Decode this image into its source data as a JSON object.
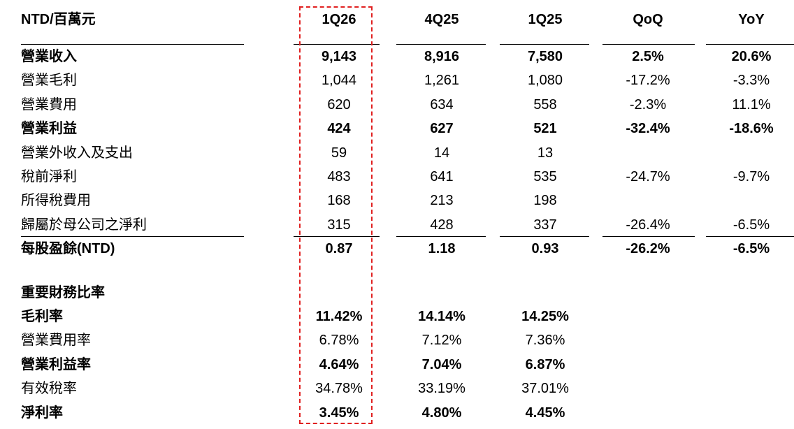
{
  "header": {
    "unit_label": "NTD/百萬元",
    "columns": [
      "1Q26",
      "4Q25",
      "1Q25",
      "QoQ",
      "YoY"
    ]
  },
  "income_statement": [
    {
      "label": "營業收入",
      "values": [
        "9,143",
        "8,916",
        "7,580",
        "2.5%",
        "20.6%"
      ],
      "bold": true
    },
    {
      "label": "營業毛利",
      "values": [
        "1,044",
        "1,261",
        "1,080",
        "-17.2%",
        "-3.3%"
      ],
      "bold": false
    },
    {
      "label": "營業費用",
      "values": [
        "620",
        "634",
        "558",
        "-2.3%",
        "11.1%"
      ],
      "bold": false
    },
    {
      "label": "營業利益",
      "values": [
        "424",
        "627",
        "521",
        "-32.4%",
        "-18.6%"
      ],
      "bold": true
    },
    {
      "label": "營業外收入及支出",
      "values": [
        "59",
        "14",
        "13",
        "",
        ""
      ],
      "bold": false
    },
    {
      "label": "稅前淨利",
      "values": [
        "483",
        "641",
        "535",
        "-24.7%",
        "-9.7%"
      ],
      "bold": false
    },
    {
      "label": "所得稅費用",
      "values": [
        "168",
        "213",
        "198",
        "",
        ""
      ],
      "bold": false
    },
    {
      "label": "歸屬於母公司之淨利",
      "values": [
        "315",
        "428",
        "337",
        "-26.4%",
        "-6.5%"
      ],
      "bold": false
    },
    {
      "label": "每股盈餘(NTD)",
      "values": [
        "0.87",
        "1.18",
        "0.93",
        "-26.2%",
        "-6.5%"
      ],
      "bold": true
    }
  ],
  "ratios_section_title": "重要財務比率",
  "ratios": [
    {
      "label": "毛利率",
      "values": [
        "11.42%",
        "14.14%",
        "14.25%"
      ],
      "bold": true
    },
    {
      "label": "營業費用率",
      "values": [
        "6.78%",
        "7.12%",
        "7.36%"
      ],
      "bold": false
    },
    {
      "label": "營業利益率",
      "values": [
        "4.64%",
        "7.04%",
        "6.87%"
      ],
      "bold": true
    },
    {
      "label": "有效稅率",
      "values": [
        "34.78%",
        "33.19%",
        "37.01%"
      ],
      "bold": false
    },
    {
      "label": "淨利率",
      "values": [
        "3.45%",
        "4.80%",
        "4.45%"
      ],
      "bold": true
    }
  ],
  "colors": {
    "highlight_border": "#e02020",
    "text": "#000000"
  }
}
